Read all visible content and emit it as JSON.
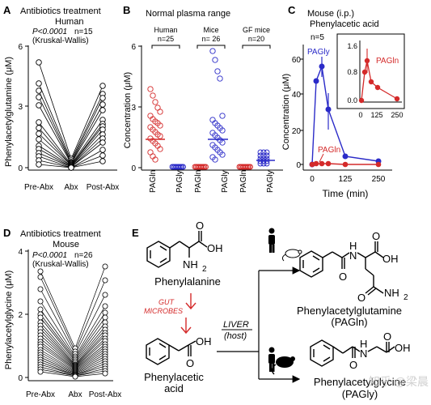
{
  "colors": {
    "black": "#000000",
    "blue": "#2b2bc8",
    "red": "#d42a2a",
    "watermark": "#c8c8c8"
  },
  "panelA": {
    "letter": "A",
    "title1": "Antibiotics treatment",
    "title2": "Human",
    "stat_p": "P<0.0001",
    "stat_n": "n=15",
    "stat_test": "(Kruskal-Wallis)",
    "ylabel": "Phenylacetylglutamine (μM)",
    "yticks": [
      "0",
      "3",
      "6"
    ],
    "xticks": [
      "Pre-Abx",
      "Abx",
      "Post-Abx"
    ]
  },
  "panelB": {
    "letter": "B",
    "title": "Normal plasma range",
    "ylabel": "Concentration (μM)",
    "yticks": [
      "0",
      "3",
      "6"
    ],
    "groups": [
      {
        "label": "Human",
        "n": "n=25"
      },
      {
        "label": "Mice",
        "n": "n= 26"
      },
      {
        "label": "GF mice",
        "n": "n=20"
      }
    ],
    "xticks": [
      "PAGln",
      "PAGly",
      "PAGln",
      "PAGly",
      "PAGln",
      "PAGly"
    ]
  },
  "panelC": {
    "letter": "C",
    "title1": "Mouse (i.p.)",
    "title2": "Phenylacetic acid",
    "n": "n=5",
    "ylabel": "Concentration (μM)",
    "xlabel": "Time (min)",
    "yticks": [
      "0",
      "20",
      "40",
      "60"
    ],
    "xticks": [
      "0",
      "125",
      "250"
    ],
    "series_label_blue": "PAGly",
    "series_label_red": "PAGln",
    "inset_yticks": [
      "0.0",
      "0.8",
      "1.6"
    ],
    "inset_xticks": [
      "0",
      "125",
      "250"
    ],
    "inset_label": "PAGln"
  },
  "panelD": {
    "letter": "D",
    "title1": "Antibiotics treatment",
    "title2": "Mouse",
    "stat_p": "P<0.0001",
    "stat_n": "n=26",
    "stat_test": "(Kruskal-Wallis)",
    "ylabel": "Phenylacetylglycine (μM)",
    "yticks": [
      "0",
      "2",
      "4"
    ],
    "xticks": [
      "Pre-Abx",
      "Abx",
      "Post-Abx"
    ]
  },
  "panelE": {
    "letter": "E",
    "phenylalanine": "Phenylalanine",
    "gut1": "GUT",
    "gut2": "MICROBES",
    "phenylacetic1": "Phenylacetic",
    "phenylacetic2": "acid",
    "liver": "LIVER",
    "host": "(host)",
    "pagln_name": "Phenylacetylglutamine",
    "pagln_abbr": "(PAGln)",
    "pagly_name": "Phenylacetylglycine",
    "pagly_abbr": "(PAGly)",
    "atom_O": "O",
    "atom_OH": "OH",
    "atom_NH2": "NH",
    "atom_sub2": "2",
    "atom_H": "H",
    "atom_N": "N"
  },
  "watermark": "知乎 @梁晨"
}
